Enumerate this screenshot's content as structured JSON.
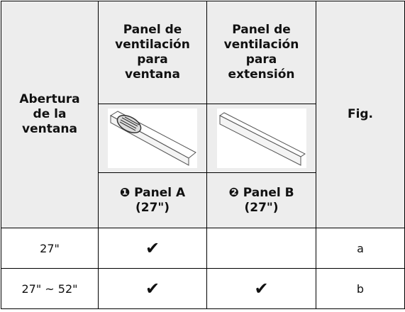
{
  "table": {
    "header": {
      "opening": "Abertura de la ventana",
      "window_panel": "Panel de ventilación para ventana",
      "extension_panel": "Panel de ventilación para extensión",
      "fig": "Fig.",
      "panel_a": "❶ Panel A (27\")",
      "panel_b": "❷ Panel B (27\")"
    },
    "rows": [
      {
        "opening": "27\"",
        "panel_a": "✔",
        "fig": "a"
      },
      {
        "opening": "27\" ~ 52\"",
        "panel_a": "✔",
        "panel_b": "✔",
        "fig": "b"
      }
    ]
  }
}
